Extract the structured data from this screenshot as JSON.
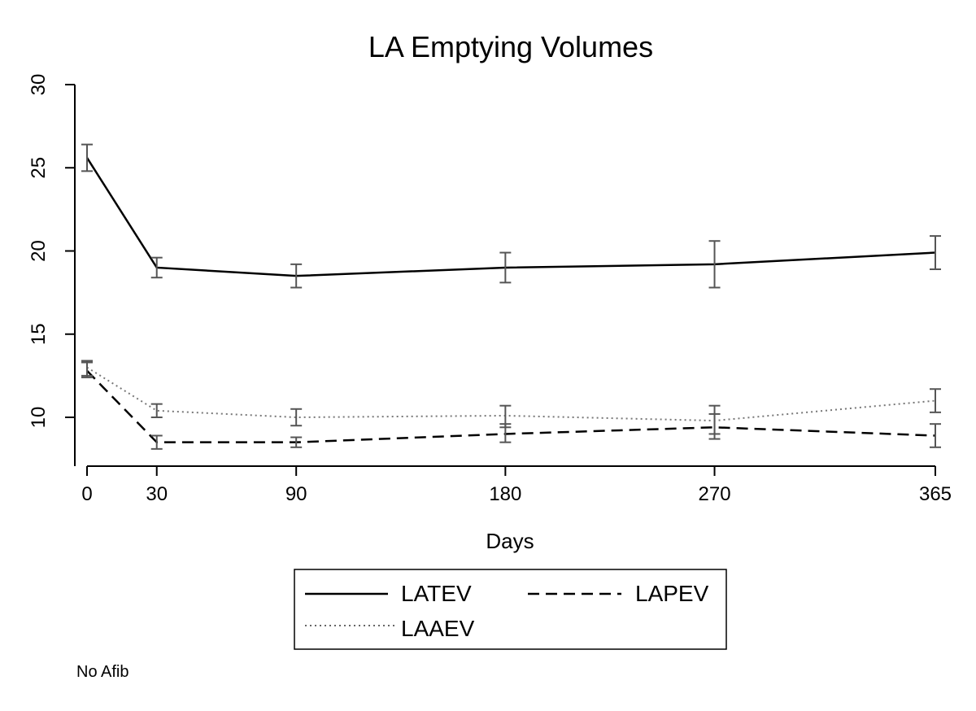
{
  "chart_data": {
    "type": "line",
    "title": "LA Emptying Volumes",
    "xlabel": "Days",
    "ylabel": "",
    "note": "No Afib",
    "x": [
      0,
      30,
      90,
      180,
      270,
      365
    ],
    "x_ticks": [
      "0",
      "30",
      "90",
      "180",
      "270",
      "365"
    ],
    "y_ticks": [
      "10",
      "15",
      "20",
      "25",
      "30"
    ],
    "xlim": [
      0,
      365
    ],
    "ylim": [
      7.2,
      30.5
    ],
    "grid": false,
    "legend_position": "bottom",
    "series": [
      {
        "name": "LATEV",
        "style": "solid",
        "values": [
          25.6,
          19.0,
          18.5,
          19.0,
          19.2,
          19.9
        ],
        "ci_low": [
          24.8,
          18.4,
          17.8,
          18.1,
          17.8,
          18.9
        ],
        "ci_high": [
          26.4,
          19.6,
          19.2,
          19.9,
          20.6,
          20.9
        ]
      },
      {
        "name": "LAPEV",
        "style": "dashed",
        "values": [
          12.8,
          8.5,
          8.5,
          9.0,
          9.4,
          8.9
        ],
        "ci_low": [
          12.4,
          8.1,
          8.2,
          8.5,
          8.7,
          8.2
        ],
        "ci_high": [
          13.3,
          8.9,
          8.8,
          9.6,
          10.2,
          9.6
        ]
      },
      {
        "name": "LAAEV",
        "style": "dotted",
        "values": [
          13.0,
          10.4,
          10.0,
          10.1,
          9.8,
          11.0
        ],
        "ci_low": [
          12.5,
          10.0,
          9.5,
          9.4,
          9.0,
          10.3
        ],
        "ci_high": [
          13.4,
          10.8,
          10.5,
          10.7,
          10.7,
          11.7
        ]
      }
    ],
    "colors": {
      "line": "#000000",
      "error_bar": "#555555"
    }
  }
}
